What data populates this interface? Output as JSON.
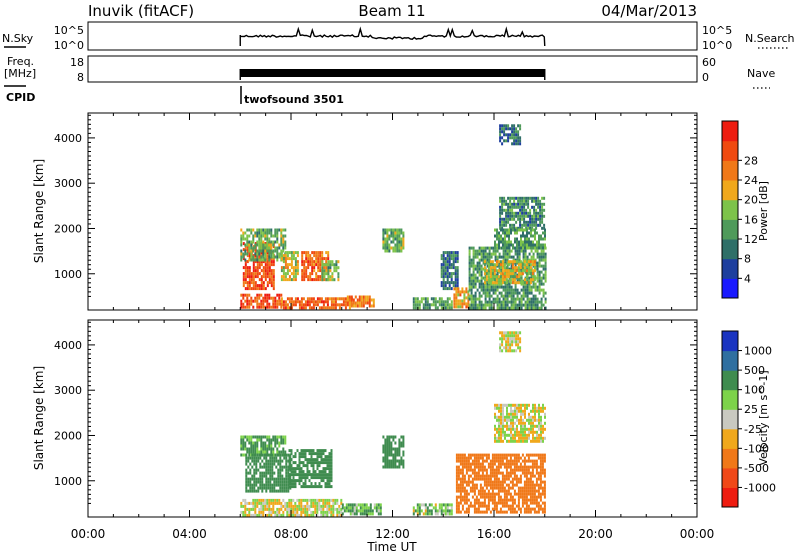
{
  "header": {
    "station": "Inuvik (fitACF)",
    "beam": "Beam 11",
    "date": "04/Mar/2013"
  },
  "sky_panel": {
    "left_label": "N.Sky",
    "left_ticks": [
      "10^5",
      "10^0"
    ],
    "right_ticks": [
      "10^5",
      "10^0"
    ],
    "right_label": "N.Search"
  },
  "freq_panel": {
    "left_label_line1": "Freq.",
    "left_label_line2": "[MHz]",
    "left_ticks": [
      "18",
      "8"
    ],
    "right_ticks": [
      "60",
      "0"
    ],
    "right_label": "Nave"
  },
  "cpid": {
    "label": "CPID",
    "value": "twofsound 3501"
  },
  "colors": {
    "power": [
      "#1a1aff",
      "#1e3f9e",
      "#2f6f68",
      "#4f9a5a",
      "#7dc34a",
      "#f0a81c",
      "#f07818",
      "#f04a10",
      "#ee1c10"
    ],
    "velocity": [
      "#ee1c10",
      "#f04818",
      "#f07818",
      "#f0a81c",
      "#c9c9c0",
      "#7dd34a",
      "#3f8c4f",
      "#2f6fa0",
      "#1a34c0"
    ]
  },
  "chart_data": [
    {
      "type": "heatmap",
      "panel": "power",
      "xlabel": "",
      "ylabel": "Slant Range [km]",
      "xlim": [
        0,
        24
      ],
      "ylim": [
        200,
        4550
      ],
      "xticks": [
        "00:00",
        "04:00",
        "08:00",
        "12:00",
        "16:00",
        "20:00",
        "00:00"
      ],
      "yticks": [
        1000,
        2000,
        3000,
        4000
      ],
      "colorbar": {
        "label": "Power [dB]",
        "ticks": [
          "4",
          "8",
          "12",
          "16",
          "20",
          "24",
          "28"
        ]
      },
      "regions": [
        {
          "t": [
            6.0,
            7.6
          ],
          "r": [
            250,
            560
          ],
          "value": 28
        },
        {
          "t": [
            7.6,
            10.4
          ],
          "r": [
            250,
            480
          ],
          "value": 26
        },
        {
          "t": [
            6.1,
            7.3
          ],
          "r": [
            700,
            1700
          ],
          "value": 28
        },
        {
          "t": [
            6.0,
            7.8
          ],
          "r": [
            1300,
            2000
          ],
          "value": 14
        },
        {
          "t": [
            7.6,
            8.3
          ],
          "r": [
            900,
            1500
          ],
          "value": 18
        },
        {
          "t": [
            8.4,
            9.5
          ],
          "r": [
            900,
            1500
          ],
          "value": 26
        },
        {
          "t": [
            9.2,
            9.9
          ],
          "r": [
            900,
            1300
          ],
          "value": 14
        },
        {
          "t": [
            10.2,
            11.3
          ],
          "r": [
            280,
            520
          ],
          "value": 24
        },
        {
          "t": [
            11.6,
            12.4
          ],
          "r": [
            1500,
            2000
          ],
          "value": 14
        },
        {
          "t": [
            12.8,
            14.3
          ],
          "r": [
            250,
            480
          ],
          "value": 12
        },
        {
          "t": [
            13.9,
            14.6
          ],
          "r": [
            700,
            1500
          ],
          "value": 8
        },
        {
          "t": [
            14.4,
            15.0
          ],
          "r": [
            300,
            700
          ],
          "value": 22
        },
        {
          "t": [
            15.0,
            18.0
          ],
          "r": [
            250,
            1600
          ],
          "value": 12
        },
        {
          "t": [
            15.6,
            17.6
          ],
          "r": [
            800,
            1300
          ],
          "value": 18
        },
        {
          "t": [
            16.2,
            18.0
          ],
          "r": [
            2000,
            2700
          ],
          "value": 10
        },
        {
          "t": [
            16.0,
            18.0
          ],
          "r": [
            1600,
            2000
          ],
          "value": 12
        },
        {
          "t": [
            16.2,
            17.0
          ],
          "r": [
            3900,
            4300
          ],
          "value": 8
        }
      ]
    },
    {
      "type": "heatmap",
      "panel": "velocity",
      "xlabel": "Time UT",
      "ylabel": "Slant Range [km]",
      "xlim": [
        0,
        24
      ],
      "ylim": [
        200,
        4550
      ],
      "xticks": [
        "00:00",
        "04:00",
        "08:00",
        "12:00",
        "16:00",
        "20:00",
        "00:00"
      ],
      "yticks": [
        1000,
        2000,
        3000,
        4000
      ],
      "colorbar": {
        "label": "Velocity [m s^-1]",
        "ticks": [
          "1000",
          "500",
          "100",
          "25",
          "-25",
          "-100",
          "-500",
          "-1000"
        ]
      },
      "regions": [
        {
          "t": [
            6.0,
            7.8
          ],
          "r": [
            1600,
            2000
          ],
          "value": 80
        },
        {
          "t": [
            6.2,
            8.0
          ],
          "r": [
            800,
            1600
          ],
          "value": 150
        },
        {
          "t": [
            7.9,
            9.6
          ],
          "r": [
            900,
            1700
          ],
          "value": 200
        },
        {
          "t": [
            6.0,
            10.0
          ],
          "r": [
            250,
            600
          ],
          "value": 0
        },
        {
          "t": [
            10.0,
            11.5
          ],
          "r": [
            250,
            500
          ],
          "value": 60
        },
        {
          "t": [
            11.6,
            12.4
          ],
          "r": [
            1300,
            2000
          ],
          "value": 150
        },
        {
          "t": [
            12.8,
            14.3
          ],
          "r": [
            250,
            500
          ],
          "value": 40
        },
        {
          "t": [
            14.5,
            18.0
          ],
          "r": [
            300,
            1600
          ],
          "value": -150
        },
        {
          "t": [
            16.0,
            18.0
          ],
          "r": [
            1900,
            2700
          ],
          "value": 0
        },
        {
          "t": [
            16.2,
            17.0
          ],
          "r": [
            3900,
            4300
          ],
          "value": 0
        }
      ]
    }
  ]
}
